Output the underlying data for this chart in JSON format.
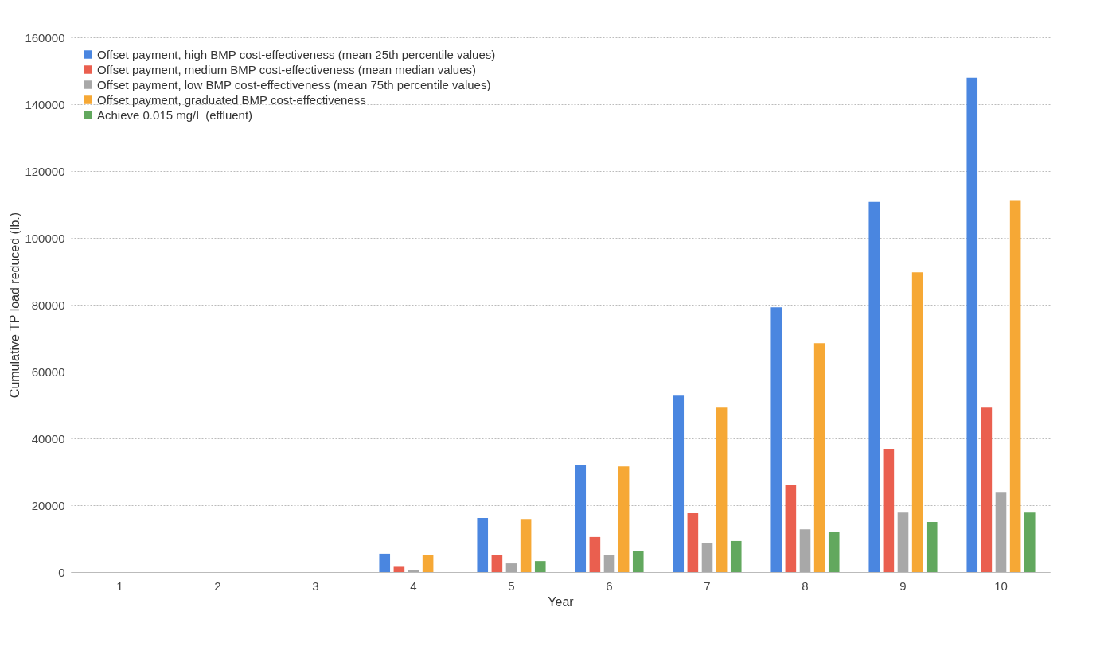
{
  "chart_data": {
    "type": "bar",
    "xlabel": "Year",
    "ylabel": "Cumulative TP load reduced (lb.)",
    "categories": [
      "1",
      "2",
      "3",
      "4",
      "5",
      "6",
      "7",
      "8",
      "9",
      "10"
    ],
    "series": [
      {
        "name": "Offset payment, high BMP cost-effectiveness (mean 25th percentile values)",
        "color": "#4a86e0",
        "values": [
          0,
          0,
          0,
          5500,
          16200,
          31900,
          52800,
          79200,
          110800,
          147900
        ]
      },
      {
        "name": "Offset payment, medium BMP cost-effectiveness (mean median values)",
        "color": "#ea5f4f",
        "values": [
          0,
          0,
          0,
          1800,
          5200,
          10500,
          17600,
          26200,
          36900,
          49200
        ]
      },
      {
        "name": "Offset payment, low BMP cost-effectiveness (mean 75th percentile values)",
        "color": "#a8a8a8",
        "values": [
          0,
          0,
          0,
          700,
          2600,
          5200,
          8800,
          12800,
          17800,
          24000
        ]
      },
      {
        "name": "Offset payment, graduated BMP cost-effectiveness",
        "color": "#f6a835",
        "values": [
          0,
          0,
          0,
          5200,
          15900,
          31600,
          49200,
          68500,
          89700,
          111300
        ]
      },
      {
        "name": "Achieve 0.015 mg/L (effluent)",
        "color": "#62a85e",
        "values": [
          0,
          0,
          0,
          0,
          3300,
          6200,
          9300,
          11900,
          15000,
          17800
        ]
      }
    ],
    "ylim": [
      0,
      160000
    ],
    "yticks": [
      0,
      20000,
      40000,
      60000,
      80000,
      100000,
      120000,
      140000,
      160000
    ],
    "grid": "y",
    "legend": "top left"
  }
}
